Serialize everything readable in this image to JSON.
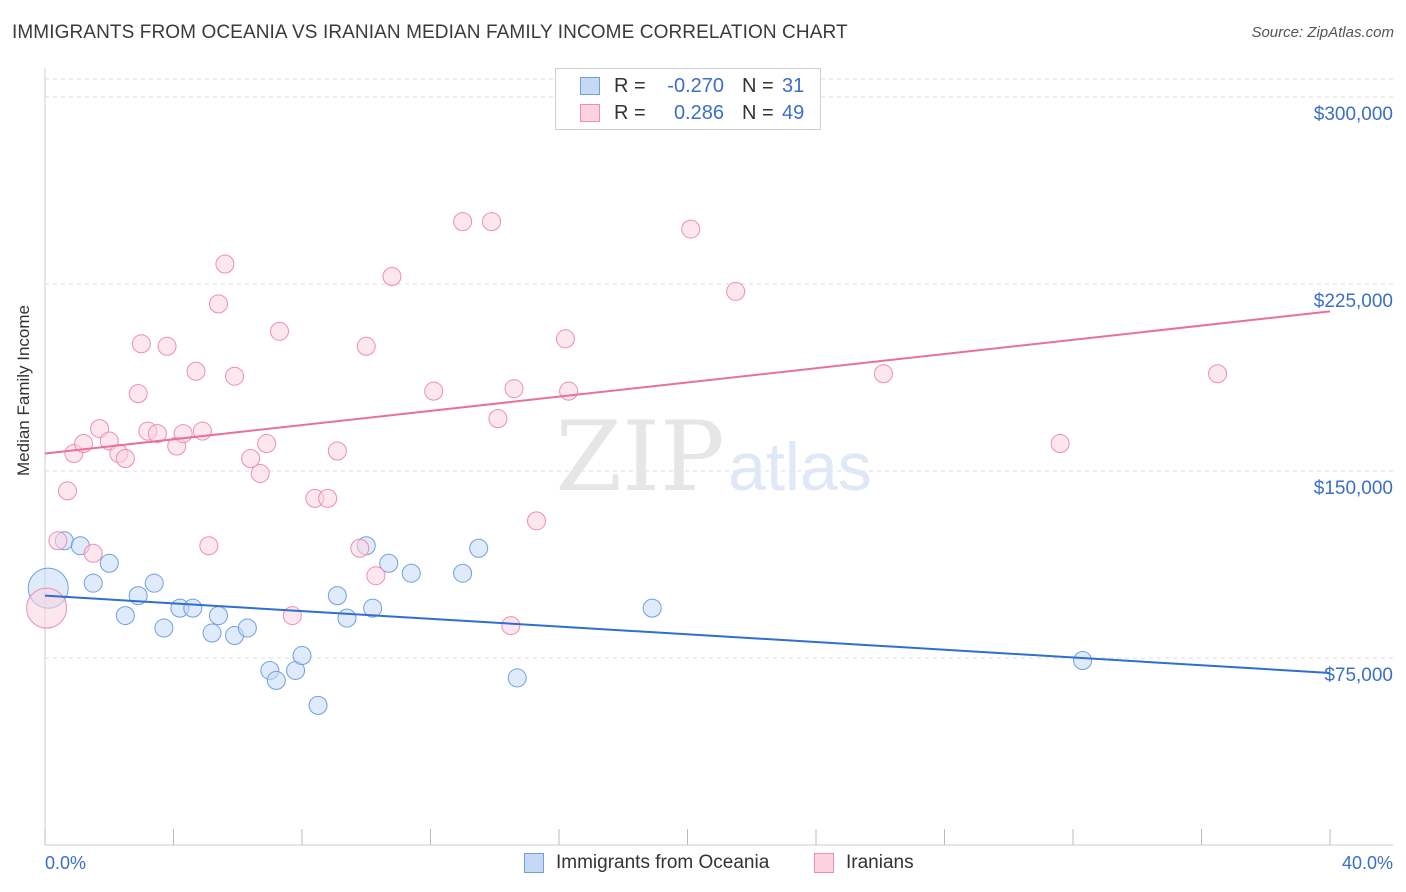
{
  "title": "IMMIGRANTS FROM OCEANIA VS IRANIAN MEDIAN FAMILY INCOME CORRELATION CHART",
  "source": "Source: ZipAtlas.com",
  "watermark": {
    "zip": "ZIP",
    "atlas": "atlas"
  },
  "legend_top": {
    "rows": [
      {
        "r_label": "R =",
        "r_value": "-0.270",
        "n_label": "N =",
        "n_value": "31",
        "color": "#6fa0e0"
      },
      {
        "r_label": "R =",
        "r_value": "0.286",
        "n_label": "N =",
        "n_value": "49",
        "color": "#ef8db0"
      }
    ]
  },
  "legend_bottom": [
    {
      "label": "Immigrants from Oceania",
      "color": "#6fa0e0"
    },
    {
      "label": "Iranians",
      "color": "#ef8db0"
    }
  ],
  "chart_data": {
    "type": "scatter",
    "title": "IMMIGRANTS FROM OCEANIA VS IRANIAN MEDIAN FAMILY INCOME CORRELATION CHART",
    "xlabel": "",
    "ylabel": "Median Family Income",
    "xlim": [
      0,
      40
    ],
    "ylim": [
      0,
      310000
    ],
    "x_tick_labels": [
      "0.0%",
      "40.0%"
    ],
    "y_ticks": [
      75000,
      150000,
      225000,
      300000
    ],
    "y_tick_labels": [
      "$75,000",
      "$150,000",
      "$225,000",
      "$300,000"
    ],
    "grid": true,
    "legend_position": "top-center",
    "series": [
      {
        "name": "Immigrants from Oceania",
        "color": "#6fa0e0",
        "points": [
          {
            "x": 0.1,
            "y": 103000,
            "big": true
          },
          {
            "x": 0.6,
            "y": 122000
          },
          {
            "x": 1.1,
            "y": 120000
          },
          {
            "x": 1.5,
            "y": 105000
          },
          {
            "x": 2.0,
            "y": 113000
          },
          {
            "x": 2.5,
            "y": 92000
          },
          {
            "x": 2.9,
            "y": 100000
          },
          {
            "x": 3.4,
            "y": 105000
          },
          {
            "x": 3.7,
            "y": 87000
          },
          {
            "x": 4.2,
            "y": 95000
          },
          {
            "x": 4.6,
            "y": 95000
          },
          {
            "x": 5.2,
            "y": 85000
          },
          {
            "x": 5.4,
            "y": 92000
          },
          {
            "x": 5.9,
            "y": 84000
          },
          {
            "x": 6.3,
            "y": 87000
          },
          {
            "x": 7.0,
            "y": 70000
          },
          {
            "x": 7.2,
            "y": 66000
          },
          {
            "x": 7.8,
            "y": 70000
          },
          {
            "x": 8.0,
            "y": 76000
          },
          {
            "x": 8.5,
            "y": 56000
          },
          {
            "x": 9.1,
            "y": 100000
          },
          {
            "x": 9.4,
            "y": 91000
          },
          {
            "x": 10.0,
            "y": 120000
          },
          {
            "x": 10.2,
            "y": 95000
          },
          {
            "x": 10.7,
            "y": 113000
          },
          {
            "x": 11.4,
            "y": 109000
          },
          {
            "x": 13.0,
            "y": 109000
          },
          {
            "x": 13.5,
            "y": 119000
          },
          {
            "x": 14.7,
            "y": 67000
          },
          {
            "x": 18.9,
            "y": 95000
          },
          {
            "x": 32.3,
            "y": 74000
          }
        ],
        "trend": {
          "x": [
            0,
            40
          ],
          "y": [
            100000,
            69000
          ]
        }
      },
      {
        "name": "Iranians",
        "color": "#ef8db0",
        "points": [
          {
            "x": 0.05,
            "y": 95000,
            "big": true
          },
          {
            "x": 0.4,
            "y": 122000
          },
          {
            "x": 0.7,
            "y": 142000
          },
          {
            "x": 0.9,
            "y": 157000
          },
          {
            "x": 1.2,
            "y": 161000
          },
          {
            "x": 1.5,
            "y": 117000
          },
          {
            "x": 1.7,
            "y": 167000
          },
          {
            "x": 2.0,
            "y": 162000
          },
          {
            "x": 2.3,
            "y": 157000
          },
          {
            "x": 2.5,
            "y": 155000
          },
          {
            "x": 2.9,
            "y": 181000
          },
          {
            "x": 3.0,
            "y": 201000
          },
          {
            "x": 3.2,
            "y": 166000
          },
          {
            "x": 3.5,
            "y": 165000
          },
          {
            "x": 3.8,
            "y": 200000
          },
          {
            "x": 4.1,
            "y": 160000
          },
          {
            "x": 4.3,
            "y": 165000
          },
          {
            "x": 4.7,
            "y": 190000
          },
          {
            "x": 4.9,
            "y": 166000
          },
          {
            "x": 5.1,
            "y": 120000
          },
          {
            "x": 5.4,
            "y": 217000
          },
          {
            "x": 5.6,
            "y": 233000
          },
          {
            "x": 5.9,
            "y": 188000
          },
          {
            "x": 6.4,
            "y": 155000
          },
          {
            "x": 6.7,
            "y": 149000
          },
          {
            "x": 6.9,
            "y": 161000
          },
          {
            "x": 7.3,
            "y": 206000
          },
          {
            "x": 7.7,
            "y": 92000
          },
          {
            "x": 8.4,
            "y": 139000
          },
          {
            "x": 8.8,
            "y": 139000
          },
          {
            "x": 9.1,
            "y": 158000
          },
          {
            "x": 9.8,
            "y": 119000
          },
          {
            "x": 10.0,
            "y": 200000
          },
          {
            "x": 10.3,
            "y": 108000
          },
          {
            "x": 10.8,
            "y": 228000
          },
          {
            "x": 12.1,
            "y": 182000
          },
          {
            "x": 13.0,
            "y": 250000
          },
          {
            "x": 13.9,
            "y": 250000
          },
          {
            "x": 14.1,
            "y": 171000
          },
          {
            "x": 14.5,
            "y": 88000
          },
          {
            "x": 14.6,
            "y": 183000
          },
          {
            "x": 15.3,
            "y": 130000
          },
          {
            "x": 16.2,
            "y": 203000
          },
          {
            "x": 16.3,
            "y": 182000
          },
          {
            "x": 20.1,
            "y": 247000
          },
          {
            "x": 21.5,
            "y": 222000
          },
          {
            "x": 26.1,
            "y": 189000
          },
          {
            "x": 31.6,
            "y": 161000
          },
          {
            "x": 36.5,
            "y": 189000
          }
        ],
        "trend": {
          "x": [
            0,
            40
          ],
          "y": [
            157000,
            214000
          ]
        }
      }
    ]
  }
}
